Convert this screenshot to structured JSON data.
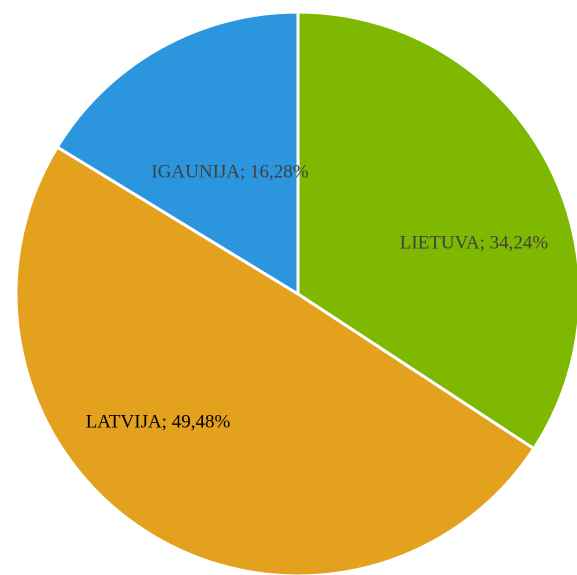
{
  "chart_data": {
    "type": "pie",
    "values": [
      34.24,
      49.48,
      16.28
    ],
    "value_labels": [
      "LIETUVA; 34,24%",
      "LATVIJA; 49,48%",
      "IGAUNIJA; 16,28%"
    ],
    "colors": [
      "#7fb800",
      "#e3a11e",
      "#2b96de"
    ],
    "label_colors": [
      "#404040",
      "#000000",
      "#404040"
    ]
  }
}
